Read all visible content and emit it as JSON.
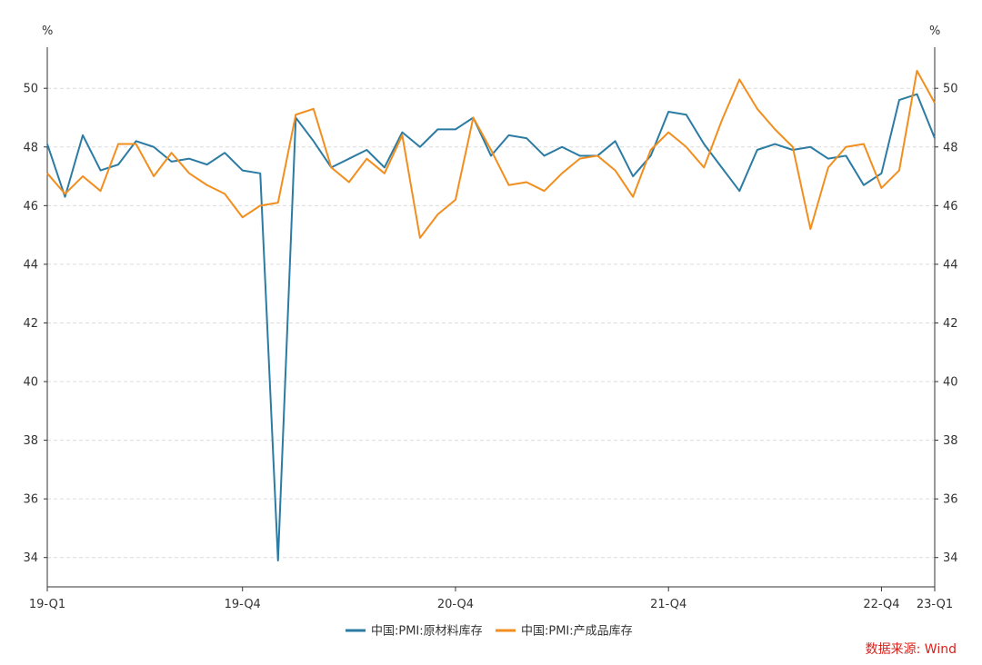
{
  "chart_data": {
    "type": "line",
    "y_unit_left": "%",
    "y_unit_right": "%",
    "ylim": [
      33,
      51.4
    ],
    "yticks": [
      34,
      36,
      38,
      40,
      42,
      44,
      46,
      48,
      50
    ],
    "x_tick_labels": [
      {
        "index": 0,
        "label": "19-Q1"
      },
      {
        "index": 11,
        "label": "19-Q4"
      },
      {
        "index": 23,
        "label": "20-Q4"
      },
      {
        "index": 35,
        "label": "21-Q4"
      },
      {
        "index": 47,
        "label": "22-Q4"
      },
      {
        "index": 50,
        "label": "23-Q1"
      }
    ],
    "grid": "horizontal-dashed",
    "legend_position": "bottom",
    "series": [
      {
        "name": "中国:PMI:原材料库存",
        "color": "#2b7ba3",
        "values": [
          48.1,
          46.3,
          48.4,
          47.2,
          47.4,
          48.2,
          48.0,
          47.5,
          47.6,
          47.4,
          47.8,
          47.2,
          47.1,
          33.9,
          49.0,
          48.2,
          47.3,
          47.6,
          47.9,
          47.3,
          48.5,
          48.0,
          48.6,
          48.6,
          49.0,
          47.7,
          48.4,
          48.3,
          47.7,
          48.0,
          47.7,
          47.7,
          48.2,
          47.0,
          47.7,
          49.2,
          49.1,
          48.1,
          47.3,
          46.5,
          47.9,
          48.1,
          47.9,
          48.0,
          47.6,
          47.7,
          46.7,
          47.1,
          49.6,
          49.8,
          48.3
        ]
      },
      {
        "name": "中国:PMI:产成品库存",
        "color": "#f28e1e",
        "values": [
          47.1,
          46.4,
          47.0,
          46.5,
          48.1,
          48.1,
          47.0,
          47.8,
          47.1,
          46.7,
          46.4,
          45.6,
          46.0,
          46.1,
          49.1,
          49.3,
          47.3,
          46.8,
          47.6,
          47.1,
          48.4,
          44.9,
          45.7,
          46.2,
          49.0,
          47.9,
          46.7,
          46.8,
          46.5,
          47.1,
          47.6,
          47.7,
          47.2,
          46.3,
          47.9,
          48.5,
          48.0,
          47.3,
          48.9,
          50.3,
          49.3,
          48.6,
          48.0,
          45.2,
          47.3,
          48.0,
          48.1,
          46.6,
          47.2,
          50.6,
          49.5
        ]
      }
    ]
  },
  "source_note": "数据来源: Wind"
}
